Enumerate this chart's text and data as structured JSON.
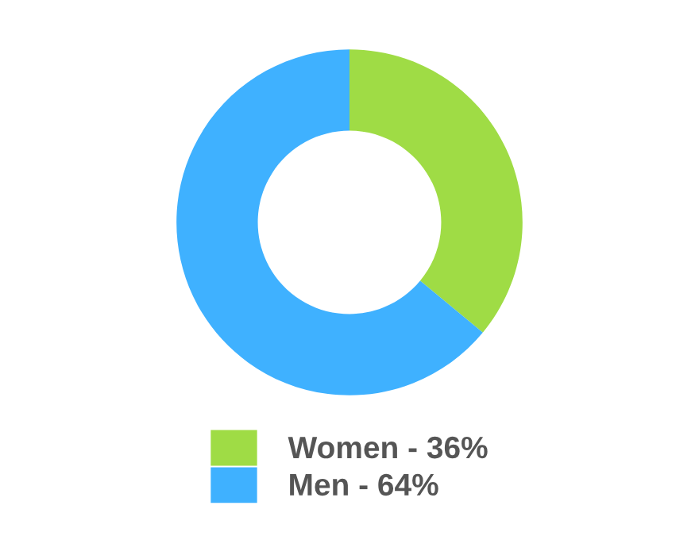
{
  "chart_data": {
    "type": "donut",
    "categories": [
      "Women - 36%",
      "Men - 64%"
    ],
    "values": [
      36,
      64
    ],
    "colors": [
      "#9fdc45",
      "#3fb1ff"
    ],
    "legend": "bottom"
  }
}
